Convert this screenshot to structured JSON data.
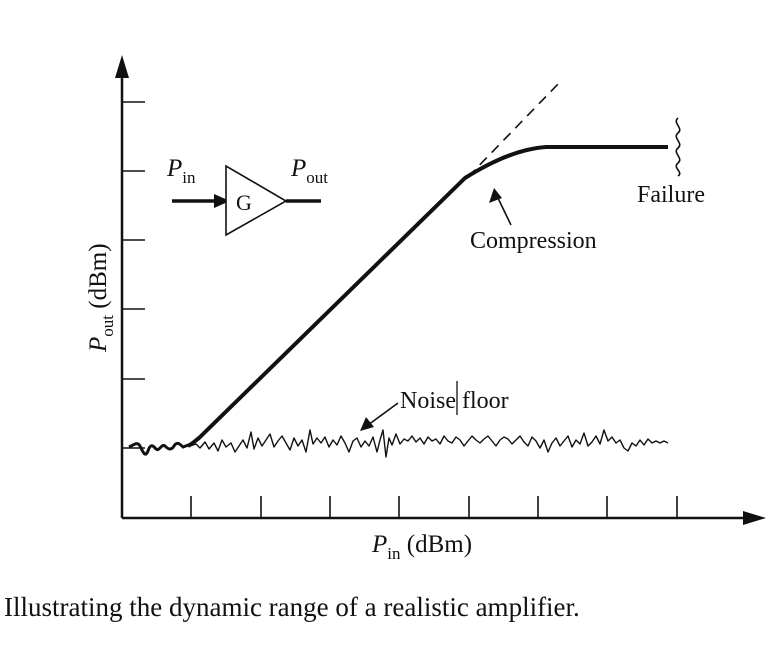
{
  "figure": {
    "x_axis": {
      "symbol": "P",
      "subscript": "in",
      "unit": " (dBm)"
    },
    "y_axis": {
      "symbol": "P",
      "subscript": "out",
      "unit": " (dBm)"
    },
    "amplifier": {
      "gain_label": "G",
      "input": {
        "symbol": "P",
        "subscript": "in"
      },
      "output": {
        "symbol": "P",
        "subscript": "out"
      }
    },
    "annotations": {
      "compression": "Compression",
      "failure": "Failure",
      "noise_floor": "Noise floor"
    }
  },
  "caption": "Illustrating the dynamic range of a realistic amplifier."
}
